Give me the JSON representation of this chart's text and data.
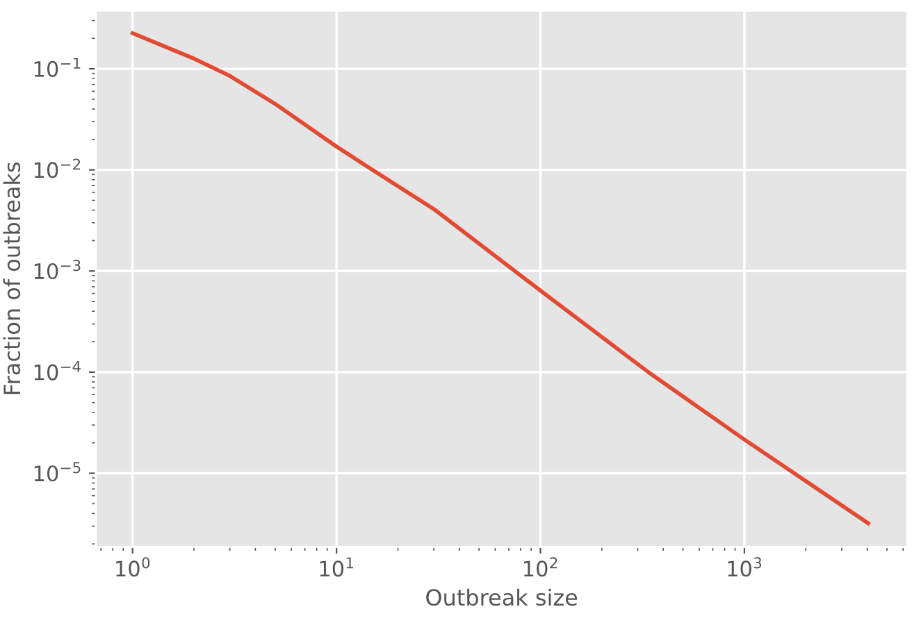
{
  "chart_data": {
    "type": "line",
    "xlabel": "Outbreak size",
    "ylabel": "Fraction of outbreaks",
    "x": [
      1,
      2,
      3,
      5,
      10,
      15,
      30,
      100,
      338,
      1000,
      4045
    ],
    "series": [
      {
        "color": "#e24a33",
        "values": [
          0.225,
          0.126,
          0.085,
          0.045,
          0.017,
          0.01,
          0.0041,
          0.00064,
          0.0001,
          2.15e-05,
          3.2e-06
        ]
      }
    ],
    "log": "xy",
    "grid": true,
    "line_style": "solid",
    "marker": "none",
    "xlim": [
      0.66,
      6300
    ],
    "ylim": [
      1.87e-06,
      0.376
    ],
    "xticks": [
      {
        "value": 1,
        "label": "10$^{0}$"
      },
      {
        "value": 10,
        "label": "10$^{1}$"
      },
      {
        "value": 100,
        "label": "10$^{2}$"
      },
      {
        "value": 1000,
        "label": "10$^{3}$"
      }
    ],
    "yticks": [
      {
        "value": 1e-05,
        "label": "10$^{−5}$"
      },
      {
        "value": 0.0001,
        "label": "10$^{−4}$"
      },
      {
        "value": 0.001,
        "label": "10$^{−3}$"
      },
      {
        "value": 0.01,
        "label": "10$^{−2}$"
      },
      {
        "value": 0.1,
        "label": "10$^{−1}$"
      }
    ]
  }
}
